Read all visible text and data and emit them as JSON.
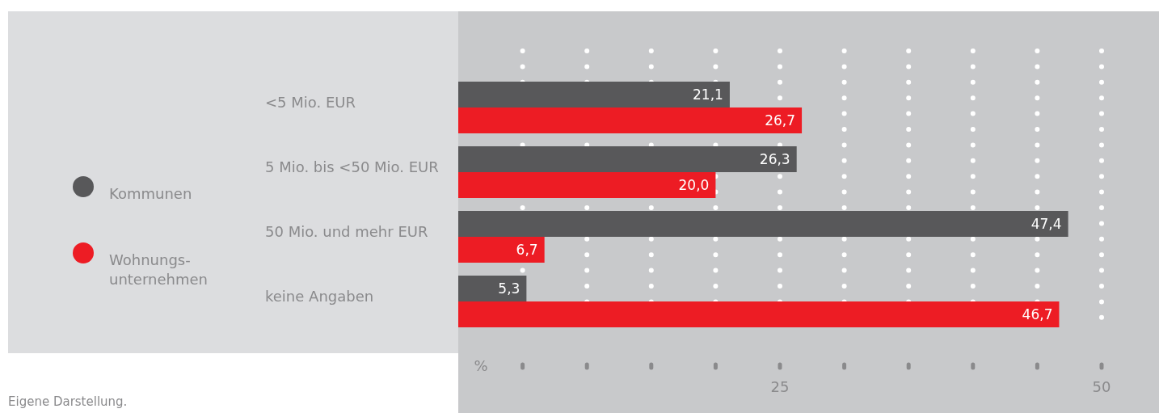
{
  "chart_data": {
    "type": "bar",
    "orientation": "horizontal",
    "categories": [
      "<5 Mio. EUR",
      "5 Mio. bis <50 Mio. EUR",
      "50 Mio. und mehr EUR",
      "keine Angaben"
    ],
    "series": [
      {
        "name": "Kommunen",
        "color": "#58585a",
        "values": [
          21.1,
          26.3,
          47.4,
          5.3
        ],
        "value_labels": [
          "21,1",
          "26,3",
          "47,4",
          "5,3"
        ]
      },
      {
        "name": "Wohnungs-unternehmen",
        "color": "#ed1c24",
        "values": [
          26.7,
          20.0,
          6.7,
          46.7
        ],
        "value_labels": [
          "26,7",
          "20,0",
          "6,7",
          "46,7"
        ]
      }
    ],
    "xlim": [
      0,
      50
    ],
    "xticks": [
      {
        "value": 5,
        "label": null
      },
      {
        "value": 10,
        "label": null
      },
      {
        "value": 15,
        "label": null
      },
      {
        "value": 20,
        "label": null
      },
      25,
      {
        "value": 30,
        "label": null
      },
      {
        "value": 35,
        "label": null
      },
      {
        "value": 40,
        "label": null
      },
      {
        "value": 45,
        "label": null
      },
      50
    ],
    "xlabel": "%",
    "grid": "x",
    "legend": "left",
    "annotations": [
      "Eigene Darstellung."
    ]
  }
}
